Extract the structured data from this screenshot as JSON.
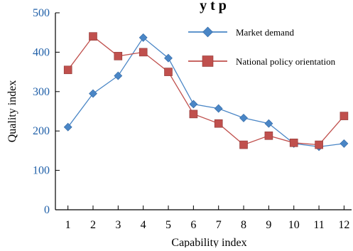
{
  "chart_data": {
    "type": "line",
    "title": "y t p",
    "xlabel": "Capability index",
    "ylabel": "Quality index",
    "x": [
      1,
      2,
      3,
      4,
      5,
      6,
      7,
      8,
      9,
      10,
      11,
      12
    ],
    "xlim": [
      0.5,
      12.3
    ],
    "ylim": [
      0,
      500
    ],
    "yticks": [
      0,
      100,
      200,
      300,
      400,
      500
    ],
    "grid": false,
    "legend_position": "top-right",
    "series": [
      {
        "name": "Market demand",
        "color": "#4a86c6",
        "marker": "diamond",
        "values": [
          210,
          295,
          340,
          437,
          385,
          268,
          257,
          233,
          219,
          168,
          160,
          168
        ]
      },
      {
        "name": "National policy orientation",
        "color": "#c0504d",
        "marker": "square",
        "values": [
          355,
          440,
          390,
          400,
          350,
          243,
          219,
          165,
          188,
          170,
          165,
          238
        ]
      }
    ]
  }
}
